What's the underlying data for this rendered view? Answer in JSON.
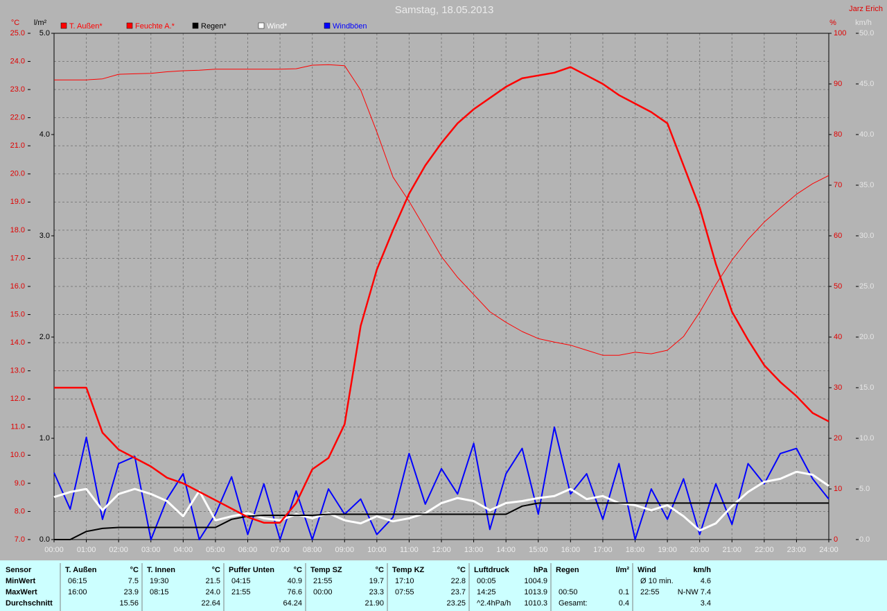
{
  "chart_data": {
    "type": "line",
    "title": "Samstag, 18.05.2013",
    "author": "Jarz Erich",
    "ylabel": "°C",
    "y2label": "%",
    "y3label": "l/m²",
    "y4label": "km/h",
    "grid": true,
    "x": [
      "00:00",
      "00:30",
      "01:00",
      "01:30",
      "02:00",
      "02:30",
      "03:00",
      "03:30",
      "04:00",
      "04:30",
      "05:00",
      "05:30",
      "06:00",
      "06:30",
      "07:00",
      "07:30",
      "08:00",
      "08:30",
      "09:00",
      "09:30",
      "10:00",
      "10:30",
      "11:00",
      "11:30",
      "12:00",
      "12:30",
      "13:00",
      "13:30",
      "14:00",
      "14:30",
      "15:00",
      "15:30",
      "16:00",
      "16:30",
      "17:00",
      "17:30",
      "18:00",
      "18:30",
      "19:00",
      "19:30",
      "20:00",
      "20:30",
      "21:00",
      "21:30",
      "22:00",
      "22:30",
      "23:00",
      "23:30",
      "24:00"
    ],
    "xticks": [
      "00:00",
      "01:00",
      "02:00",
      "03:00",
      "04:00",
      "05:00",
      "06:00",
      "07:00",
      "08:00",
      "09:00",
      "10:00",
      "11:00",
      "12:00",
      "13:00",
      "14:00",
      "15:00",
      "16:00",
      "17:00",
      "18:00",
      "19:00",
      "20:00",
      "21:00",
      "22:00",
      "23:00",
      "24:00"
    ],
    "ylim": [
      7,
      25
    ],
    "yticks": [
      {
        "value": 7,
        "label": "7.0"
      },
      {
        "value": 8,
        "label": "8.0"
      },
      {
        "value": 9,
        "label": "9.0"
      },
      {
        "value": 10,
        "label": "10.0"
      },
      {
        "value": 11,
        "label": "11.0"
      },
      {
        "value": 12,
        "label": "12.0"
      },
      {
        "value": 13,
        "label": "13.0"
      },
      {
        "value": 14,
        "label": "14.0"
      },
      {
        "value": 15,
        "label": "15.0"
      },
      {
        "value": 16,
        "label": "16.0"
      },
      {
        "value": 17,
        "label": "17.0"
      },
      {
        "value": 18,
        "label": "18.0"
      },
      {
        "value": 19,
        "label": "19.0"
      },
      {
        "value": 20,
        "label": "20.0"
      },
      {
        "value": 21,
        "label": "21.0"
      },
      {
        "value": 22,
        "label": "22.0"
      },
      {
        "value": 23,
        "label": "23.0"
      },
      {
        "value": 24,
        "label": "24.0"
      },
      {
        "value": 25,
        "label": "25.0"
      }
    ],
    "y2lim": [
      0,
      100
    ],
    "y2ticks": [
      0,
      10,
      20,
      30,
      40,
      50,
      60,
      70,
      80,
      90,
      100
    ],
    "y3lim": [
      0,
      5
    ],
    "y3ticks": [
      {
        "value": 0,
        "label": "0.0"
      },
      {
        "value": 1,
        "label": "1.0"
      },
      {
        "value": 2,
        "label": "2.0"
      },
      {
        "value": 3,
        "label": "3.0"
      },
      {
        "value": 4,
        "label": "4.0"
      },
      {
        "value": 5,
        "label": "5.0"
      }
    ],
    "y4lim": [
      0,
      50
    ],
    "y4ticks": [
      {
        "value": 0,
        "label": "0.0"
      },
      {
        "value": 5,
        "label": "5.0"
      },
      {
        "value": 10,
        "label": "10.0"
      },
      {
        "value": 15,
        "label": "15.0"
      },
      {
        "value": 20,
        "label": "20.0"
      },
      {
        "value": 25,
        "label": "25.0"
      },
      {
        "value": 30,
        "label": "30.0"
      },
      {
        "value": 35,
        "label": "35.0"
      },
      {
        "value": 40,
        "label": "40.0"
      },
      {
        "value": 45,
        "label": "45.0"
      },
      {
        "value": 50,
        "label": "50.0"
      }
    ],
    "series": [
      {
        "name": "T. Außen*",
        "color": "#ff0000",
        "axis": "y",
        "line_width": 2.5,
        "values": [
          12.4,
          12.4,
          12.4,
          10.8,
          10.2,
          9.9,
          9.6,
          9.2,
          9.0,
          8.7,
          8.4,
          8.1,
          7.8,
          7.6,
          7.6,
          8.3,
          9.5,
          9.9,
          11.1,
          14.6,
          16.6,
          18.0,
          19.3,
          20.3,
          21.1,
          21.8,
          22.3,
          22.7,
          23.1,
          23.4,
          23.5,
          23.6,
          23.8,
          23.5,
          23.2,
          22.8,
          22.5,
          22.2,
          21.8,
          20.3,
          18.8,
          16.8,
          15.1,
          14.1,
          13.2,
          12.6,
          12.1,
          11.5,
          11.2
        ]
      },
      {
        "name": "Feuchte A.*",
        "color": "#ff0000",
        "axis": "y2",
        "line_width": 1,
        "values": [
          90.8,
          90.8,
          90.8,
          91.0,
          91.9,
          92.0,
          92.1,
          92.4,
          92.6,
          92.7,
          92.9,
          92.9,
          92.9,
          92.9,
          92.9,
          93.0,
          93.7,
          93.8,
          93.6,
          88.8,
          80.5,
          71.6,
          66.8,
          61.4,
          55.9,
          51.8,
          48.4,
          45.0,
          42.9,
          41.1,
          39.7,
          39.0,
          38.4,
          37.4,
          36.4,
          36.4,
          37.0,
          36.7,
          37.4,
          40.1,
          44.9,
          50.4,
          55.2,
          59.3,
          62.7,
          65.5,
          68.2,
          70.3,
          71.9
        ]
      },
      {
        "name": "Regen*",
        "color": "#000000",
        "axis": "y3",
        "line_width": 2,
        "values": [
          0,
          0,
          0.08,
          0.11,
          0.12,
          0.12,
          0.12,
          0.12,
          0.12,
          0.12,
          0.12,
          0.2,
          0.23,
          0.24,
          0.24,
          0.24,
          0.24,
          0.25,
          0.25,
          0.25,
          0.25,
          0.25,
          0.25,
          0.25,
          0.25,
          0.25,
          0.25,
          0.25,
          0.25,
          0.33,
          0.36,
          0.36,
          0.36,
          0.36,
          0.36,
          0.36,
          0.36,
          0.36,
          0.36,
          0.36,
          0.36,
          0.36,
          0.36,
          0.36,
          0.36,
          0.36,
          0.36,
          0.36,
          0.36
        ]
      },
      {
        "name": "Wind*",
        "color": "#ffffff",
        "axis": "y4",
        "line_width": 3,
        "values": [
          4.2,
          4.7,
          5.0,
          2.9,
          4.5,
          5.0,
          4.5,
          3.8,
          2.3,
          4.8,
          1.9,
          2.3,
          2.6,
          2.1,
          1.9,
          2.5,
          2.1,
          2.6,
          1.9,
          1.6,
          2.3,
          1.8,
          2.1,
          2.6,
          3.6,
          4.1,
          3.8,
          2.9,
          3.6,
          3.8,
          4.1,
          4.3,
          5.0,
          4.0,
          4.3,
          3.6,
          3.4,
          2.9,
          3.4,
          2.3,
          0.9,
          1.6,
          3.3,
          4.7,
          5.7,
          6.0,
          6.7,
          6.4,
          5.3
        ]
      },
      {
        "name": "Windböen",
        "color": "#0000ff",
        "axis": "y4",
        "line_width": 2,
        "values": [
          6.6,
          3.0,
          10.1,
          2.0,
          7.5,
          8.2,
          0.0,
          4.0,
          6.5,
          0.0,
          2.5,
          6.2,
          0.5,
          5.5,
          0.0,
          4.8,
          0.0,
          5.0,
          2.5,
          4.0,
          0.5,
          2.2,
          8.5,
          3.5,
          7.0,
          4.5,
          9.5,
          1.0,
          6.5,
          9.0,
          2.5,
          11.1,
          4.5,
          6.5,
          2.0,
          7.5,
          0.0,
          5.0,
          2.0,
          6.0,
          0.5,
          5.5,
          1.5,
          7.5,
          5.5,
          8.5,
          9.0,
          6.0,
          4.0
        ]
      }
    ]
  },
  "table": {
    "corner": "Sensor",
    "row_labels": [
      "MinWert",
      "MaxWert",
      "Durchschnitt"
    ],
    "groups": [
      {
        "name": "T. Außen",
        "unit": "°C",
        "rows": [
          [
            "06:15",
            "7.5"
          ],
          [
            "16:00",
            "23.9"
          ],
          [
            null,
            "15.56"
          ]
        ]
      },
      {
        "name": "T. Innen",
        "unit": "°C",
        "rows": [
          [
            "19:30",
            "21.5"
          ],
          [
            "08:15",
            "24.0"
          ],
          [
            null,
            "22.64"
          ]
        ]
      },
      {
        "name": "Puffer Unten",
        "unit": "°C",
        "rows": [
          [
            "04:15",
            "40.9"
          ],
          [
            "21:55",
            "76.6"
          ],
          [
            null,
            "64.24"
          ]
        ]
      },
      {
        "name": "Temp SZ",
        "unit": "°C",
        "rows": [
          [
            "21:55",
            "19.7"
          ],
          [
            "00:00",
            "23.3"
          ],
          [
            null,
            "21.90"
          ]
        ]
      },
      {
        "name": "Temp KZ",
        "unit": "°C",
        "rows": [
          [
            "17:10",
            "22.8"
          ],
          [
            "07:55",
            "23.7"
          ],
          [
            null,
            "23.25"
          ]
        ]
      },
      {
        "name": "Luftdruck",
        "unit": "hPa",
        "rows": [
          [
            "00:05",
            "1004.9"
          ],
          [
            "14:25",
            "1013.9"
          ],
          [
            "^2.4hPa/h",
            "1010.3"
          ]
        ]
      },
      {
        "name": "Regen",
        "unit": "l/m²",
        "rows": [
          [
            null,
            null
          ],
          [
            "00:50",
            "0.1"
          ],
          [
            "Gesamt:",
            "0.4"
          ]
        ]
      },
      {
        "name": "Wind",
        "unit": "km/h",
        "rows": [
          [
            "Ø 10 min.",
            "4.6"
          ],
          [
            "22:55",
            "N-NW 7.4"
          ],
          [
            null,
            "3.4"
          ]
        ]
      }
    ]
  }
}
